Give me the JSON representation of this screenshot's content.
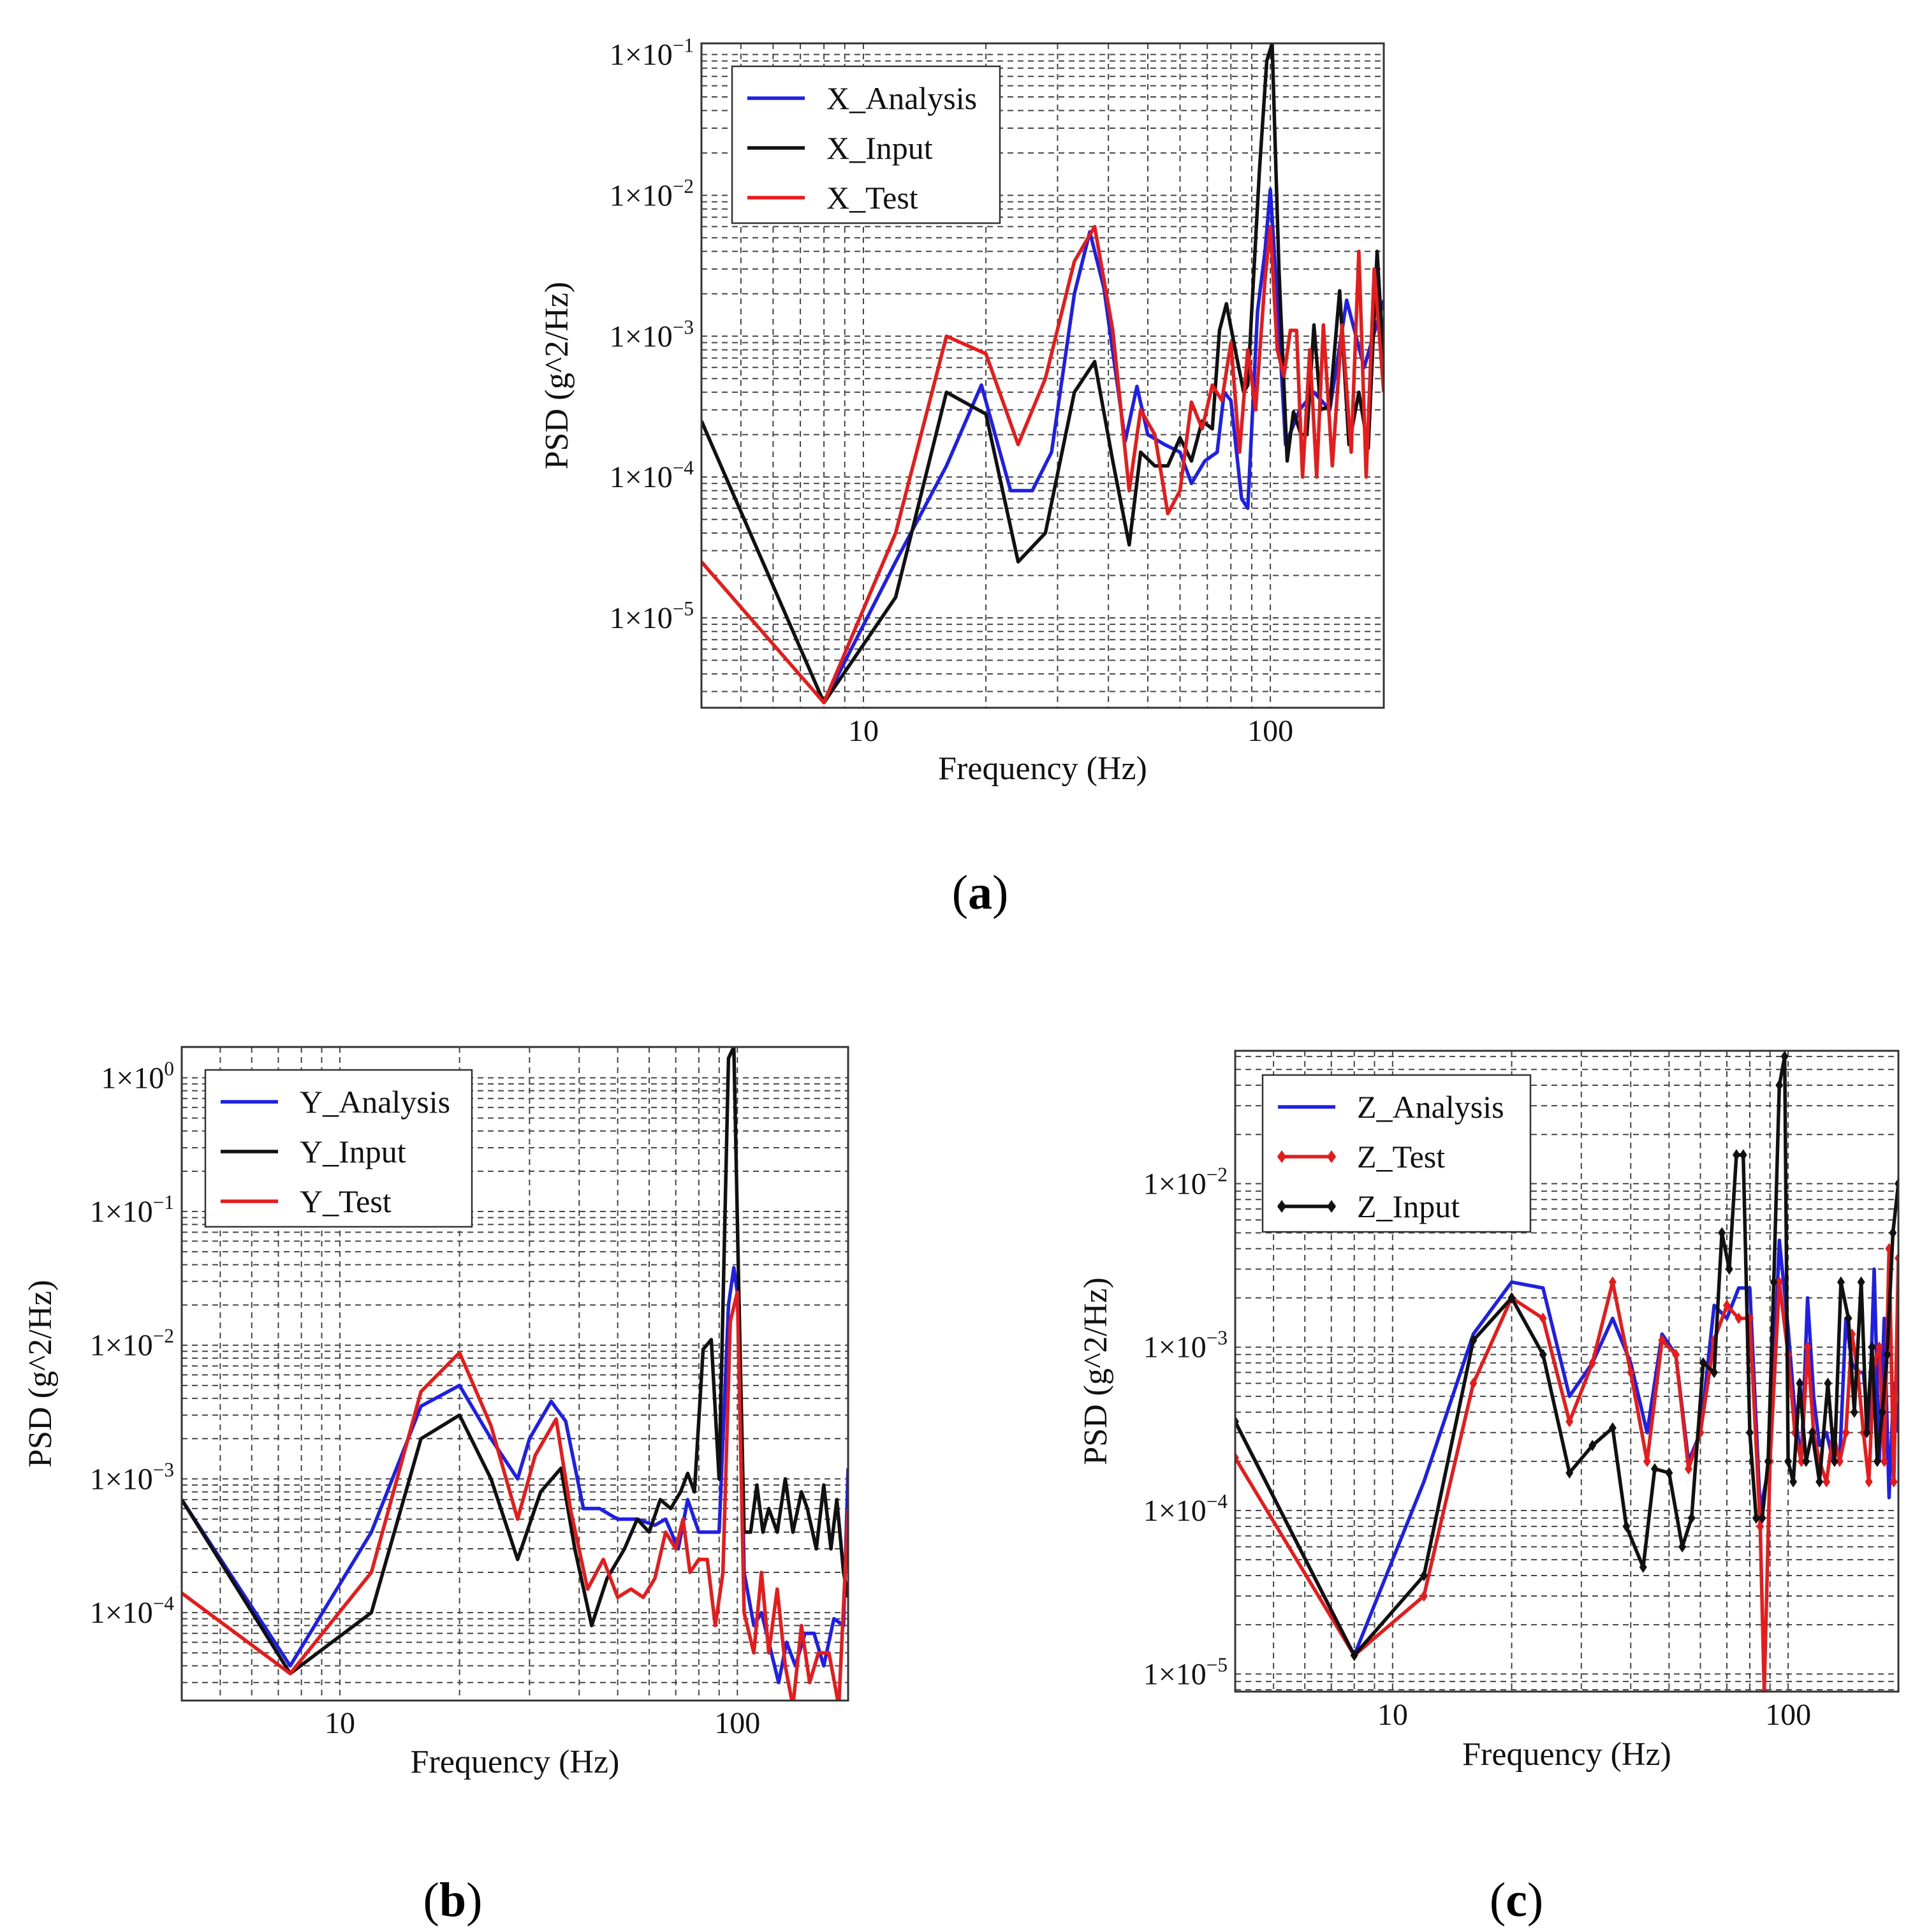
{
  "figure": {
    "panel_labels": [
      "a",
      "b",
      "c"
    ]
  },
  "chart_data": [
    {
      "type": "line",
      "panel": "a",
      "xscale": "log",
      "yscale": "log",
      "xlabel": "Frequency (Hz)",
      "ylabel": "PSD (g^2/Hz)",
      "xlim": [
        4,
        190
      ],
      "ylim": [
        2.3e-06,
        0.12
      ],
      "grid": true,
      "legend_position": "top-left",
      "xticks": [
        10,
        100
      ],
      "xtick_labels": [
        "10",
        "100"
      ],
      "yticks": [
        1e-05,
        0.0001,
        0.001,
        0.01,
        0.1
      ],
      "ytick_labels": [
        {
          "mantissa": "1×10",
          "exp": "−5"
        },
        {
          "mantissa": "1×10",
          "exp": "−4"
        },
        {
          "mantissa": "1×10",
          "exp": "−3"
        },
        {
          "mantissa": "1×10",
          "exp": "−2"
        },
        {
          "mantissa": "1×10",
          "exp": "−1"
        }
      ],
      "series": [
        {
          "name": "X_Analysis",
          "color": "#1f1fe6",
          "x": [
            8,
            12,
            16,
            19.5,
            23,
            26,
            29,
            33,
            36,
            39,
            44,
            47,
            50,
            55,
            60,
            64,
            69,
            74,
            77,
            80,
            85,
            88,
            93,
            97,
            100,
            104,
            109,
            118,
            128,
            140,
            154,
            170,
            190
          ],
          "y": [
            2.5e-06,
            2.5e-05,
            0.00012,
            0.00045,
            8e-05,
            8e-05,
            0.00015,
            0.002,
            0.0055,
            0.0022,
            0.00018,
            0.00044,
            0.0002,
            0.00017,
            0.00015,
            9e-05,
            0.00013,
            0.00015,
            0.0004,
            0.00035,
            7e-05,
            6e-05,
            0.0015,
            0.004,
            0.011,
            0.0018,
            0.00017,
            0.0003,
            0.0004,
            0.0003,
            0.0018,
            0.0006,
            0.0018
          ]
        },
        {
          "name": "X_Input",
          "color": "#111111",
          "x": [
            4,
            8,
            12,
            16,
            20,
            24,
            28,
            33,
            37,
            41,
            45,
            48,
            52,
            56,
            60,
            64,
            68,
            72,
            75,
            78,
            82,
            86,
            88,
            90,
            94,
            98,
            101,
            105,
            110,
            114,
            119,
            123,
            128,
            133,
            140,
            148,
            156,
            165,
            174,
            183,
            190
          ],
          "y": [
            0.00025,
            2.5e-06,
            1.4e-05,
            0.0004,
            0.00028,
            2.5e-05,
            4e-05,
            0.0004,
            0.00066,
            0.00013,
            3.3e-05,
            0.00015,
            0.00012,
            0.00012,
            0.00019,
            0.00013,
            0.00025,
            0.00022,
            0.0011,
            0.0017,
            0.0008,
            0.0004,
            0.00045,
            0.0015,
            0.015,
            0.09,
            0.12,
            0.003,
            0.00013,
            0.00029,
            0.0002,
            0.0002,
            0.0012,
            0.0003,
            0.00032,
            0.0021,
            0.00017,
            0.0004,
            0.00016,
            0.004,
            0.0006
          ]
        },
        {
          "name": "X_Test",
          "color": "#e61b1b",
          "x": [
            4,
            8,
            12,
            16,
            20,
            24,
            28,
            33,
            37,
            41,
            45,
            48,
            52,
            56,
            60,
            64,
            68,
            72,
            76,
            80,
            84,
            88,
            92,
            97,
            100,
            104,
            108,
            112,
            116,
            120,
            125,
            130,
            135,
            142,
            150,
            158,
            165,
            172,
            180,
            190
          ],
          "y": [
            2.5e-05,
            2.5e-06,
            4e-05,
            0.001,
            0.00075,
            0.00017,
            0.0005,
            0.0034,
            0.006,
            0.0011,
            8e-05,
            0.0003,
            0.0002,
            5.5e-05,
            8e-05,
            0.00034,
            0.00022,
            0.00045,
            0.00035,
            0.0009,
            0.00015,
            0.0008,
            0.0003,
            0.0025,
            0.006,
            0.0008,
            0.00052,
            0.0011,
            0.0011,
            0.0001,
            0.0008,
            0.0001,
            0.0012,
            0.00012,
            0.0012,
            0.00015,
            0.004,
            0.0001,
            0.003,
            0.0004
          ]
        }
      ]
    },
    {
      "type": "line",
      "panel": "b",
      "xscale": "log",
      "yscale": "log",
      "xlabel": "Frequency (Hz)",
      "ylabel": "PSD (g^2/Hz)",
      "xlim": [
        4,
        190
      ],
      "ylim": [
        2.2e-05,
        1.7
      ],
      "grid": true,
      "legend_position": "top-left",
      "xticks": [
        10,
        100
      ],
      "xtick_labels": [
        "10",
        "100"
      ],
      "yticks": [
        0.0001,
        0.001,
        0.01,
        0.1,
        1
      ],
      "ytick_labels": [
        {
          "mantissa": "1×10",
          "exp": "−4"
        },
        {
          "mantissa": "1×10",
          "exp": "−3"
        },
        {
          "mantissa": "1×10",
          "exp": "−2"
        },
        {
          "mantissa": "1×10",
          "exp": "−1"
        },
        {
          "mantissa": "1×10",
          "exp": "0"
        }
      ],
      "series": [
        {
          "name": "Y_Analysis",
          "color": "#1f1fe6",
          "x": [
            4,
            7.5,
            12,
            16,
            20,
            24,
            28,
            30,
            34,
            37,
            41,
            45,
            50,
            56,
            62,
            66,
            71,
            75,
            80,
            85,
            90,
            95,
            98,
            101,
            104,
            110,
            115,
            120,
            127,
            133,
            140,
            148,
            156,
            165,
            175,
            185,
            190
          ],
          "y": [
            0.0007,
            4e-05,
            0.0004,
            0.0035,
            0.005,
            0.002,
            0.001,
            0.002,
            0.0038,
            0.0027,
            0.0006,
            0.0006,
            0.0005,
            0.0005,
            0.00045,
            0.0005,
            0.0003,
            0.0007,
            0.0004,
            0.0004,
            0.0004,
            0.02,
            0.038,
            0.02,
            0.0002,
            8e-05,
            0.0001,
            6e-05,
            3e-05,
            6e-05,
            4e-05,
            7e-05,
            7e-05,
            4e-05,
            9e-05,
            8e-05,
            0.0012
          ]
        },
        {
          "name": "Y_Input",
          "color": "#111111",
          "x": [
            4,
            7.5,
            12,
            16,
            20,
            24,
            28,
            32,
            36,
            39,
            43,
            47,
            52,
            56,
            60,
            64,
            68,
            72,
            75,
            78,
            82,
            86,
            90,
            95,
            98,
            101,
            104,
            108,
            112,
            116,
            120,
            126,
            132,
            138,
            145,
            150,
            158,
            165,
            172,
            178,
            185,
            190
          ],
          "y": [
            0.0007,
            3.5e-05,
            0.0001,
            0.002,
            0.003,
            0.001,
            0.00025,
            0.0008,
            0.0012,
            0.0003,
            8e-05,
            0.00018,
            0.0003,
            0.0005,
            0.0004,
            0.0007,
            0.0006,
            0.0008,
            0.0011,
            0.0008,
            0.0093,
            0.011,
            0.001,
            1.4,
            1.7,
            0.02,
            0.0004,
            0.0004,
            0.0009,
            0.0004,
            0.0006,
            0.0004,
            0.001,
            0.0004,
            0.0008,
            0.0006,
            0.0003,
            0.0009,
            0.0003,
            0.0007,
            0.0002,
            0.00013
          ]
        },
        {
          "name": "Y_Test",
          "color": "#e61b1b",
          "x": [
            4,
            7.5,
            12,
            16,
            20,
            24,
            28,
            31,
            35,
            38,
            42,
            46,
            50,
            54,
            58,
            62,
            66,
            70,
            73,
            76,
            80,
            84,
            88,
            92,
            96,
            100,
            104,
            110,
            115,
            120,
            126,
            132,
            138,
            145,
            152,
            160,
            170,
            180,
            190
          ],
          "y": [
            0.00014,
            3.5e-05,
            0.0002,
            0.0045,
            0.0088,
            0.0025,
            0.0005,
            0.0015,
            0.0028,
            0.0006,
            0.00015,
            0.00025,
            0.00013,
            0.00015,
            0.00013,
            0.00018,
            0.0004,
            0.0003,
            0.0005,
            0.0002,
            0.00025,
            0.00025,
            8e-05,
            0.0002,
            0.015,
            0.025,
            0.0001,
            5e-05,
            0.0002,
            5e-05,
            0.00015,
            4e-05,
            2e-05,
            8e-05,
            3e-05,
            5e-05,
            5e-05,
            2e-05,
            0.0006
          ]
        }
      ]
    },
    {
      "type": "line",
      "panel": "c",
      "xscale": "log",
      "yscale": "log",
      "xlabel": "Frequency (Hz)",
      "ylabel": "PSD (g^2/Hz)",
      "xlim": [
        4,
        190
      ],
      "ylim": [
        7.8e-06,
        0.065
      ],
      "grid": true,
      "legend_position": "top-left",
      "xticks": [
        10,
        100
      ],
      "xtick_labels": [
        "10",
        "100"
      ],
      "yticks": [
        1e-05,
        0.0001,
        0.001,
        0.01
      ],
      "ytick_labels": [
        {
          "mantissa": "1×10",
          "exp": "−5"
        },
        {
          "mantissa": "1×10",
          "exp": "−4"
        },
        {
          "mantissa": "1×10",
          "exp": "−3"
        },
        {
          "mantissa": "1×10",
          "exp": "−2"
        }
      ],
      "series": [
        {
          "name": "Z_Analysis",
          "color": "#1f1fe6",
          "marker": false,
          "x": [
            4,
            8,
            12,
            16,
            20,
            24,
            28,
            32,
            36,
            40,
            44,
            48,
            52,
            56,
            60,
            65,
            70,
            75,
            80,
            85,
            90,
            95,
            100,
            104,
            108,
            112,
            116,
            120,
            125,
            130,
            135,
            140,
            145,
            150,
            155,
            160,
            165,
            170,
            175,
            180,
            185,
            190
          ],
          "y": [
            0.00035,
            1.3e-05,
            0.00015,
            0.0012,
            0.0025,
            0.0023,
            0.0005,
            0.0008,
            0.0015,
            0.0008,
            0.0003,
            0.0012,
            0.0009,
            0.0002,
            0.0003,
            0.0018,
            0.0015,
            0.0023,
            0.0023,
            0.0001,
            0.0002,
            0.0045,
            0.0013,
            0.0004,
            0.0002,
            0.002,
            0.0005,
            0.00025,
            0.0003,
            0.0002,
            0.0002,
            0.0015,
            0.0008,
            0.0007,
            0.0007,
            0.0003,
            0.003,
            0.0002,
            0.0015,
            0.00012,
            0.0006,
            0.0003
          ]
        },
        {
          "name": "Z_Test",
          "color": "#e61b1b",
          "marker": true,
          "x": [
            4,
            8,
            12,
            16,
            20,
            24,
            28,
            32,
            36,
            40,
            44,
            48,
            52,
            56,
            60,
            65,
            70,
            75,
            80,
            85,
            87,
            90,
            95,
            100,
            104,
            108,
            112,
            116,
            120,
            125,
            130,
            135,
            140,
            145,
            150,
            155,
            160,
            165,
            170,
            175,
            180,
            185,
            190
          ],
          "y": [
            0.00021,
            1.3e-05,
            3e-05,
            0.0006,
            0.002,
            0.0015,
            0.00035,
            0.0008,
            0.0025,
            0.0007,
            0.0002,
            0.0011,
            0.0009,
            0.00018,
            0.0003,
            0.0011,
            0.0018,
            0.0015,
            0.0015,
            8e-05,
            7.8e-06,
            0.0002,
            0.0025,
            0.0009,
            0.0003,
            0.0002,
            0.001,
            0.0003,
            0.0002,
            0.00015,
            0.0003,
            0.0002,
            0.0003,
            0.0012,
            0.0007,
            0.0003,
            0.00015,
            0.0008,
            0.001,
            0.0002,
            0.004,
            0.00015,
            0.0035
          ]
        },
        {
          "name": "Z_Input",
          "color": "#111111",
          "marker": true,
          "x": [
            4,
            8,
            12,
            16,
            20,
            24,
            28,
            32,
            36,
            39,
            43,
            46,
            50,
            54,
            57,
            61,
            65,
            68,
            71,
            74,
            77,
            80,
            83,
            86,
            89,
            92,
            95,
            98,
            100,
            103,
            107,
            111,
            115,
            120,
            126,
            131,
            136,
            142,
            147,
            153,
            158,
            163,
            168,
            173,
            178,
            184,
            190
          ],
          "y": [
            0.00035,
            1.3e-05,
            4e-05,
            0.0011,
            0.002,
            0.0009,
            0.00017,
            0.00025,
            0.00032,
            8e-05,
            4.5e-05,
            0.00018,
            0.00017,
            6e-05,
            9e-05,
            0.0008,
            0.0007,
            0.005,
            0.003,
            0.015,
            0.015,
            0.0003,
            9e-05,
            9e-05,
            0.0002,
            0.0025,
            0.04,
            0.06,
            0.0002,
            0.00015,
            0.0006,
            0.0002,
            0.0003,
            0.00015,
            0.0006,
            0.0002,
            0.0025,
            0.0015,
            0.0004,
            0.0025,
            0.0003,
            0.001,
            0.0002,
            0.0004,
            0.0009,
            0.005,
            0.01
          ]
        }
      ]
    }
  ]
}
